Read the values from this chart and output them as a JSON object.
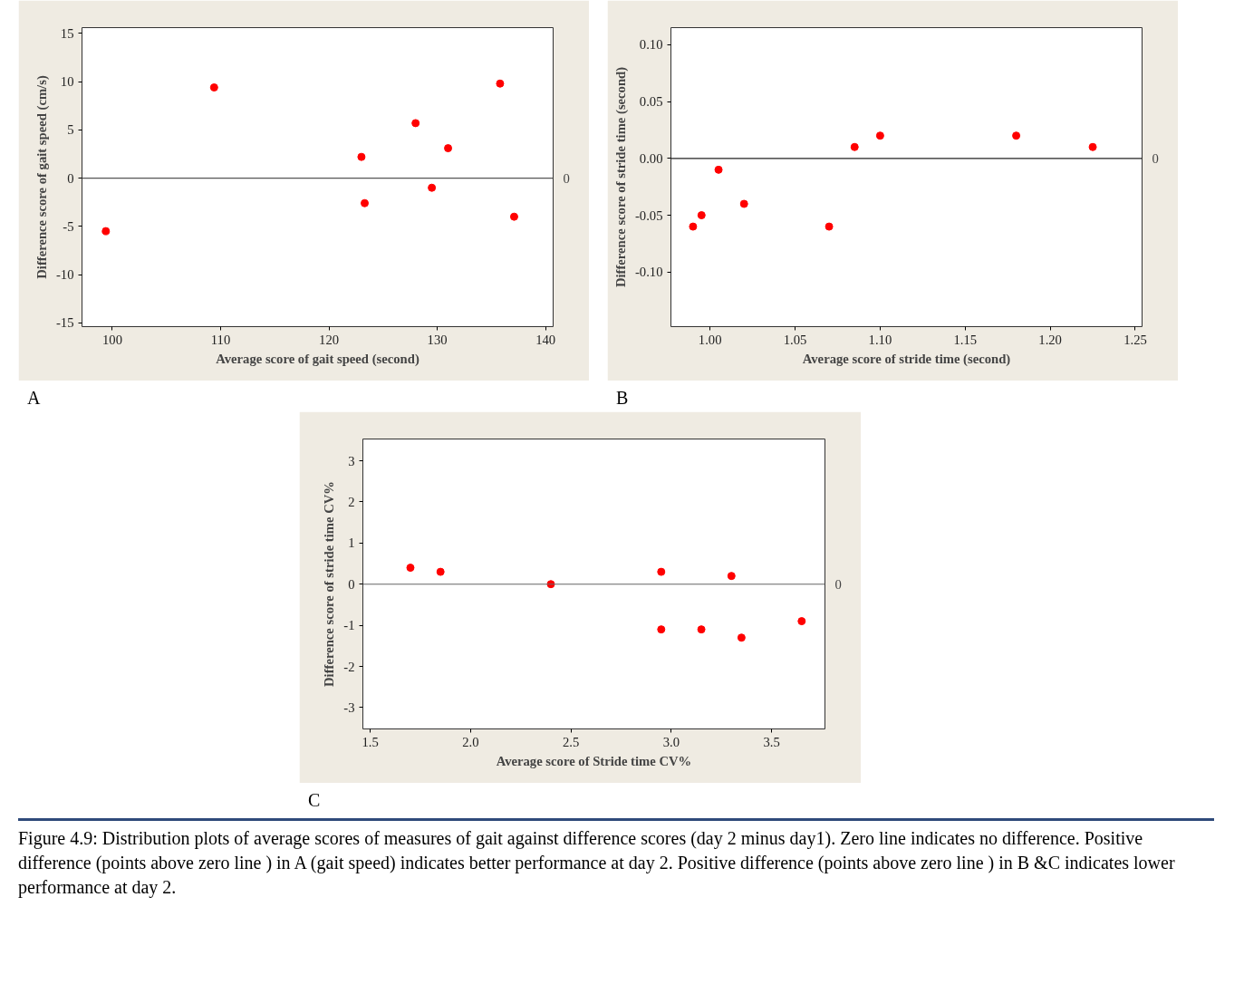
{
  "chart_data": [
    {
      "type": "scatter",
      "xlabel": "Average score of gait speed (second)",
      "ylabel": "Difference score of gait speed (cm/s)",
      "x": [
        99.4,
        109.4,
        123.0,
        123.3,
        128.0,
        129.5,
        131.0,
        135.8,
        137.1
      ],
      "values": [
        -5.5,
        9.4,
        2.2,
        -2.6,
        5.7,
        -1.0,
        3.1,
        9.8,
        -4.0
      ],
      "color": "#ff0000",
      "marker": "circle",
      "xlim": [
        97.2,
        140.7
      ],
      "ylim": [
        -15.4,
        15.6
      ],
      "xticks": [
        100,
        110,
        120,
        130,
        140
      ],
      "yticks": [
        -15,
        -10,
        -5,
        0,
        5,
        10,
        15
      ],
      "ref_lines": [
        {
          "axis": "y",
          "value": 0,
          "label": "0",
          "color": "#555555"
        }
      ],
      "annotations": [
        "A"
      ]
    },
    {
      "type": "scatter",
      "xlabel": "Average score of stride time (second)",
      "ylabel": "Difference score of stride time (second)",
      "x": [
        0.99,
        0.995,
        1.005,
        1.02,
        1.07,
        1.085,
        1.1,
        1.18,
        1.225
      ],
      "values": [
        -0.06,
        -0.05,
        -0.01,
        -0.04,
        -0.06,
        0.01,
        0.02,
        0.02,
        0.01
      ],
      "color": "#ff0000",
      "marker": "circle",
      "xlim": [
        0.977,
        1.254
      ],
      "ylim": [
        -0.148,
        0.115
      ],
      "xticks": [
        {
          "value": 1.0,
          "label": "1.00"
        },
        {
          "value": 1.05,
          "label": "1.05"
        },
        {
          "value": 1.1,
          "label": "1.10"
        },
        {
          "value": 1.15,
          "label": "1.15"
        },
        {
          "value": 1.2,
          "label": "1.20"
        },
        {
          "value": 1.25,
          "label": "1.25"
        }
      ],
      "yticks": [
        {
          "value": -0.1,
          "label": "-0.10"
        },
        {
          "value": -0.05,
          "label": "-0.05"
        },
        {
          "value": 0,
          "label": "0.00"
        },
        {
          "value": 0.05,
          "label": "0.05"
        },
        {
          "value": 0.1,
          "label": "0.10"
        }
      ],
      "ref_lines": [
        {
          "axis": "y",
          "value": 0,
          "label": "0",
          "color": "#222222"
        }
      ],
      "annotations": [
        "B"
      ]
    },
    {
      "type": "scatter",
      "xlabel": "Average score of Stride time CV%",
      "ylabel": "Difference score of stride time CV%",
      "x": [
        1.7,
        1.85,
        2.4,
        2.95,
        2.95,
        3.15,
        3.3,
        3.35,
        3.65
      ],
      "values": [
        0.4,
        0.3,
        0.0,
        0.3,
        -1.1,
        -1.1,
        0.2,
        -1.3,
        -0.9
      ],
      "color": "#ff0000",
      "marker": "circle",
      "xlim": [
        1.463,
        3.766
      ],
      "ylim": [
        -3.52,
        3.53
      ],
      "xticks": [
        1.5,
        {
          "value": 2.0,
          "label": "2.0"
        },
        2.5,
        {
          "value": 3.0,
          "label": "3.0"
        },
        3.5
      ],
      "yticks": [
        -3,
        -2,
        -1,
        0,
        1,
        2,
        3
      ],
      "ref_lines": [
        {
          "axis": "y",
          "value": 0,
          "label": "0",
          "color": "#666666"
        }
      ],
      "annotations": [
        "C",
        "Figure 4.9: Distribution plots of average scores of measures of gait against difference scores (day 2 minus day1).  Zero line indicates no difference. Positive difference (points above zero line ) in A  (gait speed) indicates better  performance at day 2. Positive difference (points above zero line ) in B &C  indicates lower performance  at day 2."
      ]
    }
  ]
}
